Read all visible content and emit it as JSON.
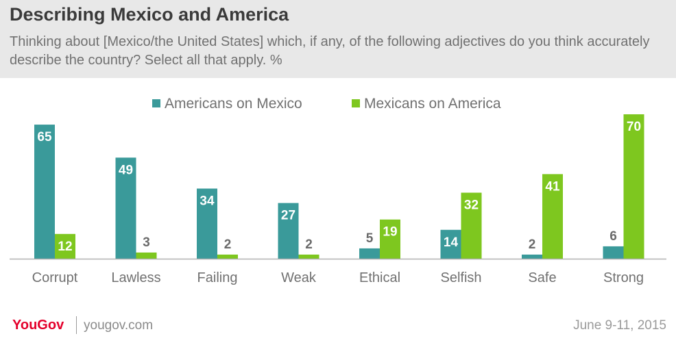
{
  "header": {
    "title": "Describing Mexico and America",
    "subtitle": "Thinking about [Mexico/the United States] which, if any, of the following adjectives do you think accurately describe the country? Select all that apply. %"
  },
  "footer": {
    "brand": "YouGov",
    "site": "yougov.com",
    "date": "June 9-11, 2015"
  },
  "colors": {
    "americans": "#3a9a9a",
    "mexicans": "#7ec71f"
  },
  "chart_data": {
    "type": "bar",
    "categories": [
      "Corrupt",
      "Lawless",
      "Failing",
      "Weak",
      "Ethical",
      "Selfish",
      "Safe",
      "Strong"
    ],
    "series": [
      {
        "name": "Americans on Mexico",
        "values": [
          65,
          49,
          34,
          27,
          5,
          14,
          2,
          6
        ]
      },
      {
        "name": "Mexicans on America",
        "values": [
          12,
          3,
          2,
          2,
          19,
          32,
          41,
          70
        ]
      }
    ],
    "ylim": [
      0,
      70
    ],
    "legend": "top",
    "grid": false,
    "data_labels": true
  }
}
